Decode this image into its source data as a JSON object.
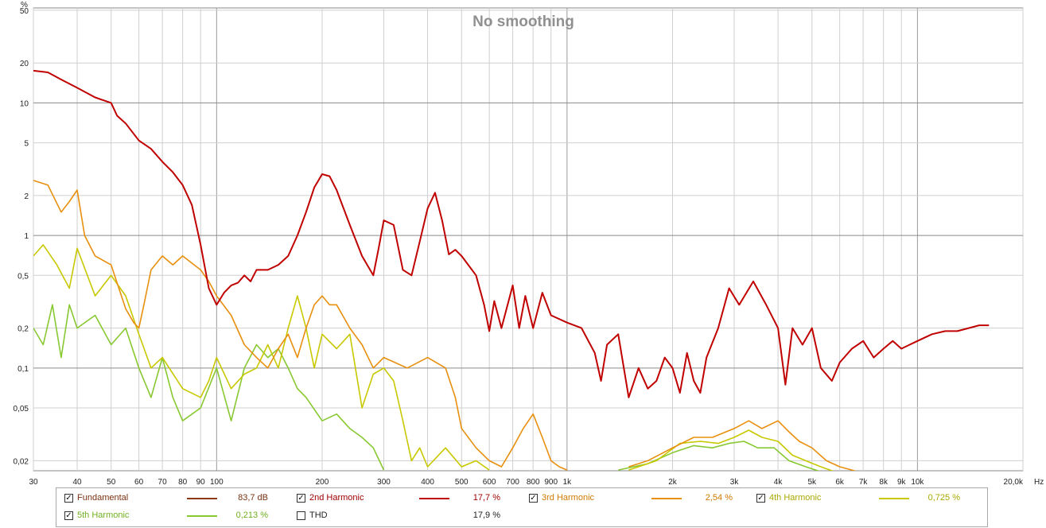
{
  "chart_data": {
    "type": "line",
    "title": "No smoothing",
    "xscale": "log",
    "yscale": "log",
    "xlim": [
      30,
      20000
    ],
    "ylim": [
      0.0168,
      52
    ],
    "x_unit": "Hz",
    "y_unit": "%",
    "x_ticks": [
      {
        "v": 30,
        "label": "30"
      },
      {
        "v": 40,
        "label": "40"
      },
      {
        "v": 50,
        "label": "50"
      },
      {
        "v": 60,
        "label": "60"
      },
      {
        "v": 70,
        "label": "70"
      },
      {
        "v": 80,
        "label": "80"
      },
      {
        "v": 90,
        "label": "90"
      },
      {
        "v": 100,
        "label": "100"
      },
      {
        "v": 200,
        "label": "200"
      },
      {
        "v": 300,
        "label": "300"
      },
      {
        "v": 400,
        "label": "400"
      },
      {
        "v": 500,
        "label": "500"
      },
      {
        "v": 600,
        "label": "600"
      },
      {
        "v": 700,
        "label": "700"
      },
      {
        "v": 800,
        "label": "800"
      },
      {
        "v": 900,
        "label": "900"
      },
      {
        "v": 1000,
        "label": "1k"
      },
      {
        "v": 2000,
        "label": "2k"
      },
      {
        "v": 3000,
        "label": "3k"
      },
      {
        "v": 4000,
        "label": "4k"
      },
      {
        "v": 5000,
        "label": "5k"
      },
      {
        "v": 6000,
        "label": "6k"
      },
      {
        "v": 7000,
        "label": "7k"
      },
      {
        "v": 8000,
        "label": "8k"
      },
      {
        "v": 9000,
        "label": "9k"
      },
      {
        "v": 10000,
        "label": "10k"
      },
      {
        "v": 20000,
        "label": "20,0k"
      }
    ],
    "y_ticks": [
      {
        "v": 50,
        "label": "50"
      },
      {
        "v": 20,
        "label": "20"
      },
      {
        "v": 10,
        "label": "10"
      },
      {
        "v": 5,
        "label": "5"
      },
      {
        "v": 2,
        "label": "2"
      },
      {
        "v": 1,
        "label": "1"
      },
      {
        "v": 0.5,
        "label": "0,5"
      },
      {
        "v": 0.2,
        "label": "0,2"
      },
      {
        "v": 0.1,
        "label": "0,1"
      },
      {
        "v": 0.05,
        "label": "0,05"
      },
      {
        "v": 0.02,
        "label": "0,02"
      }
    ],
    "series": [
      {
        "name": "2nd Harmonic",
        "color": "#c00000",
        "points": [
          [
            30,
            17.5
          ],
          [
            33,
            17
          ],
          [
            36,
            15
          ],
          [
            40,
            13
          ],
          [
            45,
            11
          ],
          [
            50,
            10
          ],
          [
            52,
            8
          ],
          [
            55,
            7
          ],
          [
            60,
            5.2
          ],
          [
            65,
            4.5
          ],
          [
            70,
            3.6
          ],
          [
            75,
            3
          ],
          [
            80,
            2.4
          ],
          [
            85,
            1.7
          ],
          [
            90,
            0.85
          ],
          [
            95,
            0.4
          ],
          [
            100,
            0.3
          ],
          [
            105,
            0.37
          ],
          [
            110,
            0.42
          ],
          [
            115,
            0.44
          ],
          [
            120,
            0.5
          ],
          [
            125,
            0.45
          ],
          [
            130,
            0.55
          ],
          [
            140,
            0.55
          ],
          [
            150,
            0.6
          ],
          [
            160,
            0.7
          ],
          [
            170,
            1.0
          ],
          [
            180,
            1.5
          ],
          [
            190,
            2.3
          ],
          [
            200,
            2.9
          ],
          [
            210,
            2.8
          ],
          [
            220,
            2.2
          ],
          [
            240,
            1.2
          ],
          [
            260,
            0.7
          ],
          [
            280,
            0.5
          ],
          [
            290,
            0.8
          ],
          [
            300,
            1.3
          ],
          [
            320,
            1.2
          ],
          [
            340,
            0.55
          ],
          [
            360,
            0.5
          ],
          [
            380,
            0.9
          ],
          [
            400,
            1.6
          ],
          [
            420,
            2.1
          ],
          [
            440,
            1.3
          ],
          [
            460,
            0.72
          ],
          [
            480,
            0.78
          ],
          [
            500,
            0.7
          ],
          [
            550,
            0.5
          ],
          [
            580,
            0.3
          ],
          [
            600,
            0.19
          ],
          [
            620,
            0.32
          ],
          [
            650,
            0.2
          ],
          [
            700,
            0.42
          ],
          [
            730,
            0.2
          ],
          [
            760,
            0.35
          ],
          [
            800,
            0.2
          ],
          [
            850,
            0.37
          ],
          [
            900,
            0.25
          ],
          [
            1000,
            0.22
          ],
          [
            1100,
            0.2
          ],
          [
            1200,
            0.13
          ],
          [
            1250,
            0.08
          ],
          [
            1300,
            0.15
          ],
          [
            1400,
            0.18
          ],
          [
            1500,
            0.06
          ],
          [
            1600,
            0.1
          ],
          [
            1700,
            0.07
          ],
          [
            1800,
            0.08
          ],
          [
            1900,
            0.12
          ],
          [
            2000,
            0.1
          ],
          [
            2100,
            0.065
          ],
          [
            2200,
            0.13
          ],
          [
            2300,
            0.08
          ],
          [
            2400,
            0.065
          ],
          [
            2500,
            0.12
          ],
          [
            2700,
            0.2
          ],
          [
            2900,
            0.4
          ],
          [
            3100,
            0.3
          ],
          [
            3400,
            0.45
          ],
          [
            3700,
            0.3
          ],
          [
            4000,
            0.2
          ],
          [
            4200,
            0.075
          ],
          [
            4400,
            0.2
          ],
          [
            4700,
            0.15
          ],
          [
            5000,
            0.2
          ],
          [
            5300,
            0.1
          ],
          [
            5700,
            0.08
          ],
          [
            6000,
            0.11
          ],
          [
            6500,
            0.14
          ],
          [
            7000,
            0.16
          ],
          [
            7500,
            0.12
          ],
          [
            8000,
            0.14
          ],
          [
            8500,
            0.16
          ],
          [
            9000,
            0.14
          ],
          [
            10000,
            0.16
          ],
          [
            11000,
            0.18
          ],
          [
            12000,
            0.19
          ],
          [
            13000,
            0.19
          ],
          [
            14000,
            0.2
          ],
          [
            15000,
            0.21
          ],
          [
            16000,
            0.21
          ]
        ]
      },
      {
        "name": "3rd Harmonic",
        "color": "#e8900e",
        "points": [
          [
            30,
            2.6
          ],
          [
            33,
            2.4
          ],
          [
            36,
            1.5
          ],
          [
            38,
            1.8
          ],
          [
            40,
            2.2
          ],
          [
            42,
            1.0
          ],
          [
            45,
            0.7
          ],
          [
            50,
            0.6
          ],
          [
            55,
            0.28
          ],
          [
            58,
            0.22
          ],
          [
            60,
            0.2
          ],
          [
            62,
            0.3
          ],
          [
            65,
            0.55
          ],
          [
            70,
            0.7
          ],
          [
            75,
            0.6
          ],
          [
            80,
            0.7
          ],
          [
            90,
            0.55
          ],
          [
            95,
            0.45
          ],
          [
            100,
            0.35
          ],
          [
            110,
            0.25
          ],
          [
            120,
            0.15
          ],
          [
            130,
            0.12
          ],
          [
            140,
            0.1
          ],
          [
            150,
            0.14
          ],
          [
            160,
            0.18
          ],
          [
            170,
            0.12
          ],
          [
            180,
            0.2
          ],
          [
            190,
            0.3
          ],
          [
            200,
            0.35
          ],
          [
            210,
            0.3
          ],
          [
            220,
            0.3
          ],
          [
            240,
            0.2
          ],
          [
            260,
            0.15
          ],
          [
            280,
            0.1
          ],
          [
            300,
            0.12
          ],
          [
            350,
            0.1
          ],
          [
            400,
            0.12
          ],
          [
            450,
            0.1
          ],
          [
            480,
            0.06
          ],
          [
            500,
            0.035
          ],
          [
            550,
            0.025
          ],
          [
            600,
            0.02
          ],
          [
            650,
            0.018
          ],
          [
            700,
            0.025
          ],
          [
            750,
            0.035
          ],
          [
            800,
            0.045
          ],
          [
            850,
            0.03
          ],
          [
            900,
            0.02
          ],
          [
            950,
            0.018
          ],
          [
            1000,
            0.017
          ]
        ]
      },
      {
        "name": "4th Harmonic",
        "color": "#c8c800",
        "points": [
          [
            30,
            0.7
          ],
          [
            32,
            0.85
          ],
          [
            35,
            0.6
          ],
          [
            38,
            0.4
          ],
          [
            40,
            0.8
          ],
          [
            45,
            0.35
          ],
          [
            50,
            0.5
          ],
          [
            55,
            0.35
          ],
          [
            60,
            0.18
          ],
          [
            65,
            0.1
          ],
          [
            70,
            0.12
          ],
          [
            80,
            0.07
          ],
          [
            90,
            0.06
          ],
          [
            95,
            0.08
          ],
          [
            100,
            0.12
          ],
          [
            110,
            0.07
          ],
          [
            120,
            0.09
          ],
          [
            130,
            0.1
          ],
          [
            140,
            0.15
          ],
          [
            150,
            0.1
          ],
          [
            160,
            0.2
          ],
          [
            170,
            0.35
          ],
          [
            180,
            0.2
          ],
          [
            190,
            0.1
          ],
          [
            200,
            0.18
          ],
          [
            220,
            0.14
          ],
          [
            240,
            0.18
          ],
          [
            260,
            0.05
          ],
          [
            280,
            0.09
          ],
          [
            300,
            0.1
          ],
          [
            320,
            0.08
          ],
          [
            340,
            0.04
          ],
          [
            360,
            0.02
          ],
          [
            380,
            0.025
          ],
          [
            400,
            0.018
          ],
          [
            450,
            0.025
          ],
          [
            500,
            0.018
          ],
          [
            550,
            0.02
          ],
          [
            600,
            0.017
          ]
        ]
      },
      {
        "name": "5th Harmonic",
        "color": "#88c830",
        "points": [
          [
            30,
            0.2
          ],
          [
            32,
            0.15
          ],
          [
            34,
            0.3
          ],
          [
            36,
            0.12
          ],
          [
            38,
            0.3
          ],
          [
            40,
            0.2
          ],
          [
            45,
            0.25
          ],
          [
            50,
            0.15
          ],
          [
            55,
            0.2
          ],
          [
            60,
            0.1
          ],
          [
            65,
            0.06
          ],
          [
            70,
            0.12
          ],
          [
            75,
            0.06
          ],
          [
            80,
            0.04
          ],
          [
            90,
            0.05
          ],
          [
            100,
            0.1
          ],
          [
            110,
            0.04
          ],
          [
            120,
            0.1
          ],
          [
            130,
            0.15
          ],
          [
            140,
            0.12
          ],
          [
            150,
            0.14
          ],
          [
            160,
            0.1
          ],
          [
            170,
            0.07
          ],
          [
            180,
            0.06
          ],
          [
            200,
            0.04
          ],
          [
            220,
            0.045
          ],
          [
            240,
            0.035
          ],
          [
            260,
            0.03
          ],
          [
            280,
            0.025
          ],
          [
            300,
            0.017
          ]
        ]
      },
      {
        "name": "HF 3rd",
        "color": "#e8900e",
        "legend": false,
        "points": [
          [
            1500,
            0.018
          ],
          [
            1700,
            0.02
          ],
          [
            2000,
            0.025
          ],
          [
            2300,
            0.03
          ],
          [
            2600,
            0.03
          ],
          [
            3000,
            0.035
          ],
          [
            3300,
            0.04
          ],
          [
            3600,
            0.035
          ],
          [
            4000,
            0.04
          ],
          [
            4300,
            0.033
          ],
          [
            4600,
            0.028
          ],
          [
            5000,
            0.025
          ],
          [
            5500,
            0.02
          ],
          [
            6000,
            0.018
          ],
          [
            6500,
            0.017
          ],
          [
            7000,
            0.016
          ]
        ]
      },
      {
        "name": "HF 4th",
        "color": "#c8c800",
        "legend": false,
        "points": [
          [
            1500,
            0.017
          ],
          [
            1800,
            0.02
          ],
          [
            2100,
            0.027
          ],
          [
            2400,
            0.028
          ],
          [
            2700,
            0.027
          ],
          [
            3000,
            0.03
          ],
          [
            3300,
            0.034
          ],
          [
            3600,
            0.03
          ],
          [
            4000,
            0.028
          ],
          [
            4400,
            0.022
          ],
          [
            4800,
            0.02
          ],
          [
            5300,
            0.018
          ],
          [
            6000,
            0.016
          ]
        ]
      },
      {
        "name": "HF 5th",
        "color": "#88c830",
        "legend": false,
        "points": [
          [
            1400,
            0.017
          ],
          [
            1700,
            0.019
          ],
          [
            2000,
            0.023
          ],
          [
            2300,
            0.026
          ],
          [
            2600,
            0.025
          ],
          [
            2900,
            0.027
          ],
          [
            3200,
            0.028
          ],
          [
            3500,
            0.025
          ],
          [
            3900,
            0.025
          ],
          [
            4300,
            0.02
          ],
          [
            4800,
            0.018
          ],
          [
            5500,
            0.016
          ]
        ]
      }
    ]
  },
  "legend": {
    "items": [
      {
        "label": "Fundamental",
        "value": "83,7 dB",
        "color": "#8b3a10",
        "checked": "✓",
        "label_color": "#7a3010"
      },
      {
        "label": "2nd Harmonic",
        "value": "17,7 %",
        "color": "#c00000",
        "checked": "✓",
        "label_color": "#a00000"
      },
      {
        "label": "3rd Harmonic",
        "value": "2,54 %",
        "color": "#e8900e",
        "checked": "✓",
        "label_color": "#d07800"
      },
      {
        "label": "4th Harmonic",
        "value": "0,725 %",
        "color": "#c8c800",
        "checked": "✓",
        "label_color": "#a8a800"
      },
      {
        "label": "5th Harmonic",
        "value": "0,213 %",
        "color": "#88c830",
        "checked": "✓",
        "label_color": "#70b020"
      },
      {
        "label": "THD",
        "value": "17,9 %",
        "color": "",
        "checked": "",
        "label_color": "#222222"
      }
    ]
  },
  "colors": {
    "grid": "#c8c8c8",
    "grid_major": "#8a8a8a",
    "title": "#909090"
  }
}
